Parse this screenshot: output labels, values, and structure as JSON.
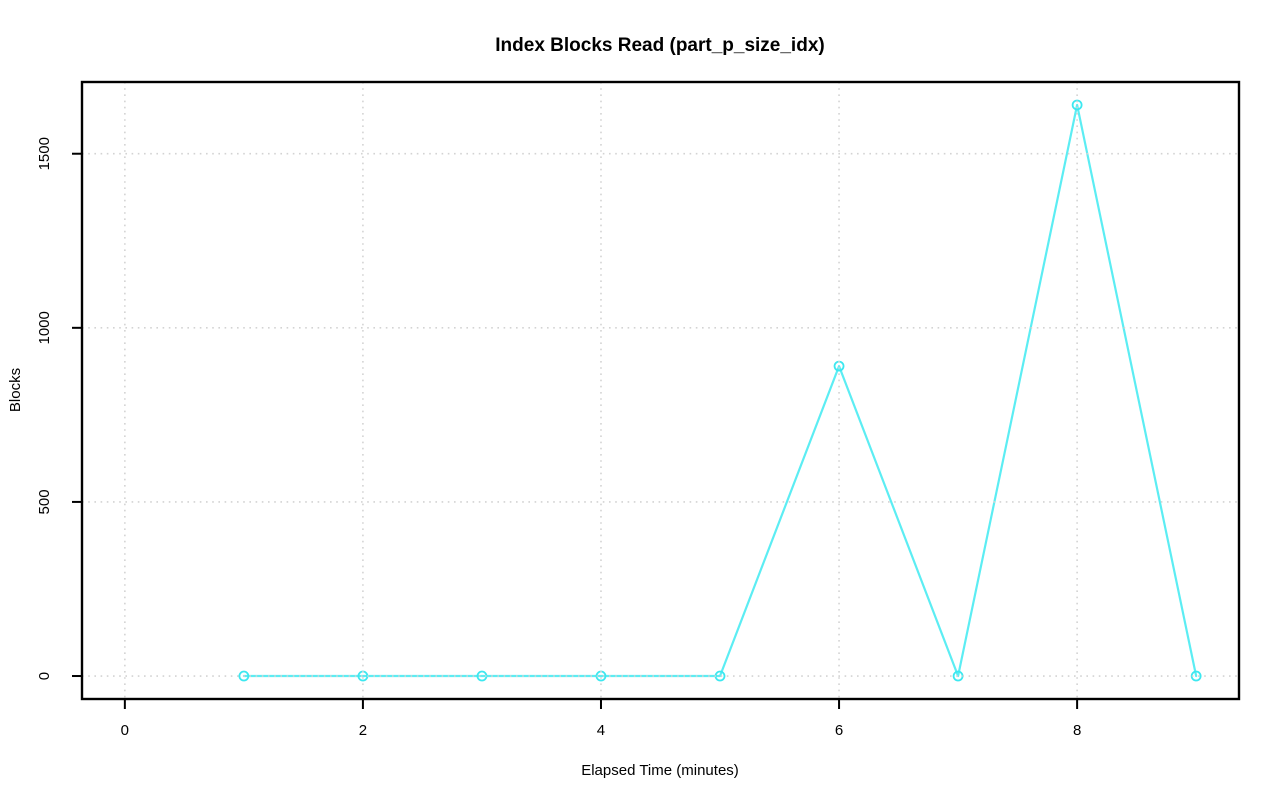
{
  "chart_data": {
    "type": "line",
    "title": "Index Blocks Read (part_p_size_idx)",
    "xlabel": "Elapsed Time (minutes)",
    "ylabel": "Blocks",
    "x": [
      1,
      2,
      3,
      4,
      5,
      6,
      7,
      8,
      9
    ],
    "values": [
      0,
      0,
      0,
      0,
      0,
      890,
      0,
      1640,
      0
    ],
    "x_ticks": [
      0,
      2,
      4,
      6,
      8
    ],
    "x_tick_labels": [
      "0",
      "2",
      "4",
      "6",
      "8"
    ],
    "y_ticks": [
      0,
      500,
      1000,
      1500
    ],
    "y_tick_labels": [
      "0",
      "500",
      "1000",
      "1500"
    ],
    "xlim": [
      -0.36,
      9.36
    ],
    "ylim": [
      -66,
      1706
    ],
    "grid": "dotted",
    "grid_on_top_of_series": true,
    "legend_position": "none",
    "marker": "open-circle",
    "colors": {
      "line": "#5CEDF3",
      "marker": "#3CE8F0",
      "grid": "#D3D3D3",
      "axis": "#000000",
      "text": "#000000",
      "background": "#FFFFFF"
    }
  }
}
